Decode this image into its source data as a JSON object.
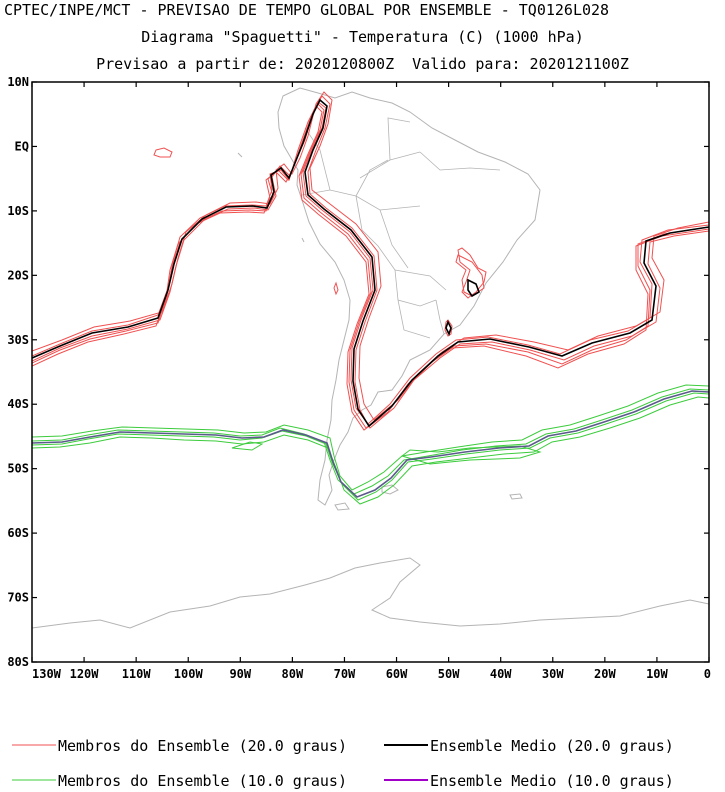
{
  "header": {
    "line1": "CPTEC/INPE/MCT - PREVISAO DE TEMPO GLOBAL POR ENSEMBLE - TQ0126L028",
    "line2": "Diagrama \"Spaguetti\" - Temperatura (C) (1000 hPa)",
    "line3": "Previsao a partir de: 2020120800Z  Valido para: 2020121100Z"
  },
  "map": {
    "lon_range": [
      -130,
      0
    ],
    "lat_range": [
      -80,
      10
    ],
    "lat_ticks": [
      "10N",
      "EQ",
      "10S",
      "20S",
      "30S",
      "40S",
      "50S",
      "60S",
      "70S",
      "80S"
    ],
    "lon_ticks": [
      "130W",
      "120W",
      "110W",
      "100W",
      "90W",
      "80W",
      "70W",
      "60W",
      "50W",
      "40W",
      "30W",
      "20W",
      "10W",
      "0"
    ],
    "coastline_color": "#b4b4b4",
    "member_20_color": "#f05050",
    "mean_20_color": "#000000",
    "member_10_color": "#3ccc3c",
    "mean_10_color": "#a000c8"
  },
  "legend": {
    "member_20": "Membros do Ensemble (20.0 graus)",
    "mean_20": "Ensemble Medio (20.0 graus)",
    "member_10": "Membros do Ensemble (10.0 graus)",
    "mean_10": "Ensemble Medio (10.0 graus)"
  }
}
